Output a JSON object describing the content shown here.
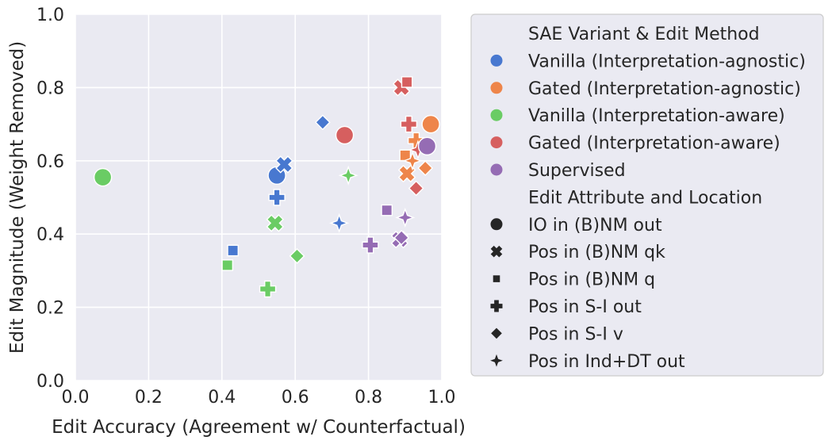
{
  "chart_data": {
    "type": "scatter",
    "xlabel": "Edit Accuracy (Agreement w/ Counterfactual)",
    "ylabel": "Edit Magnitude (Weight Removed)",
    "xlim": [
      0.0,
      1.0
    ],
    "ylim": [
      0.0,
      1.0
    ],
    "xticks": [
      "0.0",
      "0.2",
      "0.4",
      "0.6",
      "0.8",
      "1.0"
    ],
    "yticks": [
      "0.0",
      "0.2",
      "0.4",
      "0.6",
      "0.8",
      "1.0"
    ],
    "grid": true,
    "legend_position": "outside-right",
    "legend": {
      "hue_title": "SAE Variant & Edit Method",
      "hues": [
        {
          "label": "Vanilla (Interpretation-agnostic)",
          "color": "#4878d0"
        },
        {
          "label": "Gated (Interpretation-agnostic)",
          "color": "#ee854a"
        },
        {
          "label": "Vanilla (Interpretation-aware)",
          "color": "#6acc64"
        },
        {
          "label": "Gated (Interpretation-aware)",
          "color": "#d65f5f"
        },
        {
          "label": "Supervised",
          "color": "#956cb4"
        }
      ],
      "style_title": "Edit Attribute and Location",
      "styles": [
        {
          "label": "IO in (B)NM out",
          "marker": "circle"
        },
        {
          "label": "Pos in (B)NM qk",
          "marker": "x"
        },
        {
          "label": "Pos in (B)NM q",
          "marker": "square"
        },
        {
          "label": "Pos in S-I out",
          "marker": "plus"
        },
        {
          "label": "Pos in S-I v",
          "marker": "diamond"
        },
        {
          "label": "Pos in Ind+DT out",
          "marker": "star4"
        }
      ]
    },
    "points": [
      {
        "series": "Vanilla (Interpretation-agnostic)",
        "marker": "circle",
        "x": 0.55,
        "y": 0.56
      },
      {
        "series": "Vanilla (Interpretation-agnostic)",
        "marker": "x",
        "x": 0.57,
        "y": 0.59
      },
      {
        "series": "Vanilla (Interpretation-agnostic)",
        "marker": "square",
        "x": 0.43,
        "y": 0.355
      },
      {
        "series": "Vanilla (Interpretation-agnostic)",
        "marker": "plus",
        "x": 0.55,
        "y": 0.5
      },
      {
        "series": "Vanilla (Interpretation-agnostic)",
        "marker": "diamond",
        "x": 0.675,
        "y": 0.705
      },
      {
        "series": "Vanilla (Interpretation-agnostic)",
        "marker": "star4",
        "x": 0.72,
        "y": 0.43
      },
      {
        "series": "Gated (Interpretation-agnostic)",
        "marker": "circle",
        "x": 0.97,
        "y": 0.7
      },
      {
        "series": "Gated (Interpretation-agnostic)",
        "marker": "x",
        "x": 0.905,
        "y": 0.565
      },
      {
        "series": "Gated (Interpretation-agnostic)",
        "marker": "square",
        "x": 0.9,
        "y": 0.615
      },
      {
        "series": "Gated (Interpretation-agnostic)",
        "marker": "plus",
        "x": 0.93,
        "y": 0.655
      },
      {
        "series": "Gated (Interpretation-agnostic)",
        "marker": "diamond",
        "x": 0.955,
        "y": 0.58
      },
      {
        "series": "Gated (Interpretation-agnostic)",
        "marker": "star4",
        "x": 0.92,
        "y": 0.6
      },
      {
        "series": "Vanilla (Interpretation-aware)",
        "marker": "circle",
        "x": 0.075,
        "y": 0.555
      },
      {
        "series": "Vanilla (Interpretation-aware)",
        "marker": "x",
        "x": 0.545,
        "y": 0.43
      },
      {
        "series": "Vanilla (Interpretation-aware)",
        "marker": "square",
        "x": 0.415,
        "y": 0.315
      },
      {
        "series": "Vanilla (Interpretation-aware)",
        "marker": "plus",
        "x": 0.525,
        "y": 0.25
      },
      {
        "series": "Vanilla (Interpretation-aware)",
        "marker": "diamond",
        "x": 0.605,
        "y": 0.34
      },
      {
        "series": "Vanilla (Interpretation-aware)",
        "marker": "star4",
        "x": 0.745,
        "y": 0.56
      },
      {
        "series": "Gated (Interpretation-aware)",
        "marker": "circle",
        "x": 0.735,
        "y": 0.67
      },
      {
        "series": "Gated (Interpretation-aware)",
        "marker": "x",
        "x": 0.89,
        "y": 0.8
      },
      {
        "series": "Gated (Interpretation-aware)",
        "marker": "square",
        "x": 0.905,
        "y": 0.815
      },
      {
        "series": "Gated (Interpretation-aware)",
        "marker": "plus",
        "x": 0.91,
        "y": 0.7
      },
      {
        "series": "Gated (Interpretation-aware)",
        "marker": "diamond",
        "x": 0.93,
        "y": 0.525
      },
      {
        "series": "Gated (Interpretation-aware)",
        "marker": "star4",
        "x": 0.935,
        "y": 0.63
      },
      {
        "series": "Supervised",
        "marker": "circle",
        "x": 0.96,
        "y": 0.64
      },
      {
        "series": "Supervised",
        "marker": "x",
        "x": 0.885,
        "y": 0.385
      },
      {
        "series": "Supervised",
        "marker": "square",
        "x": 0.85,
        "y": 0.465
      },
      {
        "series": "Supervised",
        "marker": "plus",
        "x": 0.805,
        "y": 0.37
      },
      {
        "series": "Supervised",
        "marker": "diamond",
        "x": 0.89,
        "y": 0.39
      },
      {
        "series": "Supervised",
        "marker": "star4",
        "x": 0.9,
        "y": 0.445
      }
    ]
  }
}
